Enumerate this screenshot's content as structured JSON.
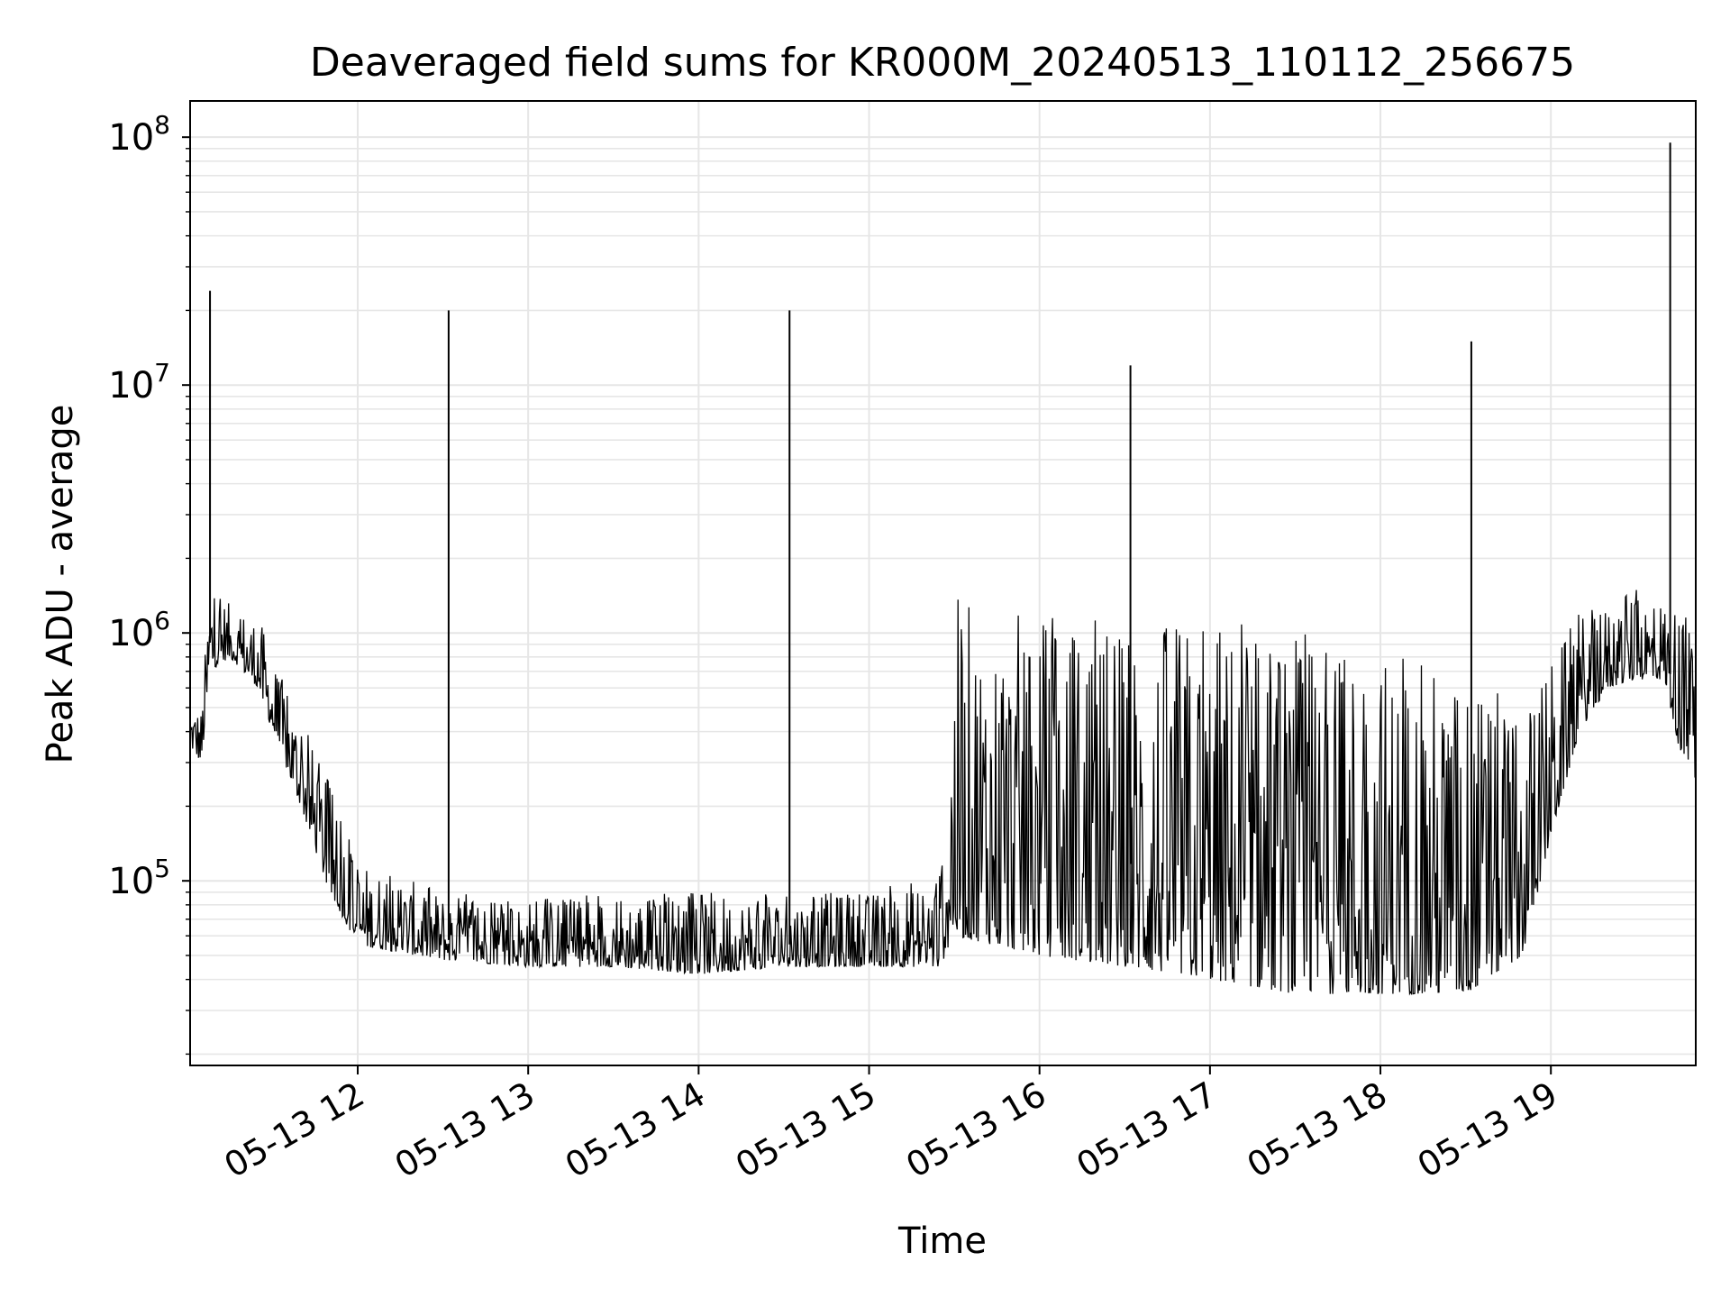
{
  "chart_data": {
    "type": "line",
    "title": "Deaveraged field sums for KR000M_20240513_110112_256675",
    "xlabel": "Time",
    "ylabel": "Peak ADU - average",
    "yscale": "log",
    "grid": true,
    "legend": "none",
    "line_color": "#000000",
    "grid_color": "#e6e6e6",
    "x_tick_labels": [
      "05-13 12",
      "05-13 13",
      "05-13 14",
      "05-13 15",
      "05-13 16",
      "05-13 17",
      "05-13 18",
      "05-13 19"
    ],
    "x_tick_times": [
      "2024-05-13T12:00",
      "2024-05-13T13:00",
      "2024-05-13T14:00",
      "2024-05-13T15:00",
      "2024-05-13T16:00",
      "2024-05-13T17:00",
      "2024-05-13T18:00",
      "2024-05-13T19:00"
    ],
    "xlim": [
      "2024-05-13T11:01",
      "2024-05-13T19:51"
    ],
    "y_ticks": [
      {
        "base": "10",
        "exp": "5",
        "value": 100000
      },
      {
        "base": "10",
        "exp": "6",
        "value": 1000000
      },
      {
        "base": "10",
        "exp": "7",
        "value": 10000000
      },
      {
        "base": "10",
        "exp": "8",
        "value": 100000000
      }
    ],
    "ylim": [
      18000,
      140000000
    ],
    "series": [
      {
        "envelope": [
          {
            "x": "2024-05-13T11:01",
            "low": 350000,
            "high": 550000
          },
          {
            "x": "2024-05-13T11:05",
            "low": 300000,
            "high": 500000
          },
          {
            "x": "2024-05-13T11:08",
            "low": 700000,
            "high": 1700000
          },
          {
            "x": "2024-05-13T11:15",
            "low": 800000,
            "high": 1300000
          },
          {
            "x": "2024-05-13T11:25",
            "low": 600000,
            "high": 1200000
          },
          {
            "x": "2024-05-13T11:30",
            "low": 400000,
            "high": 800000
          },
          {
            "x": "2024-05-13T11:40",
            "low": 200000,
            "high": 450000
          },
          {
            "x": "2024-05-13T11:50",
            "low": 90000,
            "high": 250000
          },
          {
            "x": "2024-05-13T12:00",
            "low": 55000,
            "high": 120000
          },
          {
            "x": "2024-05-13T12:30",
            "low": 48000,
            "high": 90000
          },
          {
            "x": "2024-05-13T13:00",
            "low": 45000,
            "high": 85000
          },
          {
            "x": "2024-05-13T13:30",
            "low": 45000,
            "high": 90000
          },
          {
            "x": "2024-05-13T14:00",
            "low": 42000,
            "high": 90000
          },
          {
            "x": "2024-05-13T14:30",
            "low": 45000,
            "high": 90000
          },
          {
            "x": "2024-05-13T15:00",
            "low": 45000,
            "high": 90000
          },
          {
            "x": "2024-05-13T15:25",
            "low": 45000,
            "high": 110000
          },
          {
            "x": "2024-05-13T15:30",
            "low": 60000,
            "high": 1400000
          },
          {
            "x": "2024-05-13T16:00",
            "low": 50000,
            "high": 1200000
          },
          {
            "x": "2024-05-13T16:30",
            "low": 45000,
            "high": 1100000
          },
          {
            "x": "2024-05-13T17:00",
            "low": 40000,
            "high": 1200000
          },
          {
            "x": "2024-05-13T17:30",
            "low": 35000,
            "high": 1000000
          },
          {
            "x": "2024-05-13T18:00",
            "low": 35000,
            "high": 900000
          },
          {
            "x": "2024-05-13T18:30",
            "low": 35000,
            "high": 700000
          },
          {
            "x": "2024-05-13T18:50",
            "low": 50000,
            "high": 500000
          },
          {
            "x": "2024-05-13T19:00",
            "low": 150000,
            "high": 800000
          },
          {
            "x": "2024-05-13T19:10",
            "low": 400000,
            "high": 1200000
          },
          {
            "x": "2024-05-13T19:20",
            "low": 600000,
            "high": 1300000
          },
          {
            "x": "2024-05-13T19:30",
            "low": 650000,
            "high": 1500000
          },
          {
            "x": "2024-05-13T19:40",
            "low": 650000,
            "high": 1400000
          },
          {
            "x": "2024-05-13T19:45",
            "low": 350000,
            "high": 1300000
          },
          {
            "x": "2024-05-13T19:51",
            "low": 250000,
            "high": 1200000
          }
        ],
        "spikes": [
          {
            "x": "2024-05-13T11:08",
            "y": 24000000
          },
          {
            "x": "2024-05-13T12:32",
            "y": 20000000
          },
          {
            "x": "2024-05-13T14:32",
            "y": 20000000
          },
          {
            "x": "2024-05-13T16:32",
            "y": 12000000
          },
          {
            "x": "2024-05-13T18:32",
            "y": 15000000
          },
          {
            "x": "2024-05-13T19:42",
            "y": 95000000
          }
        ]
      }
    ]
  }
}
